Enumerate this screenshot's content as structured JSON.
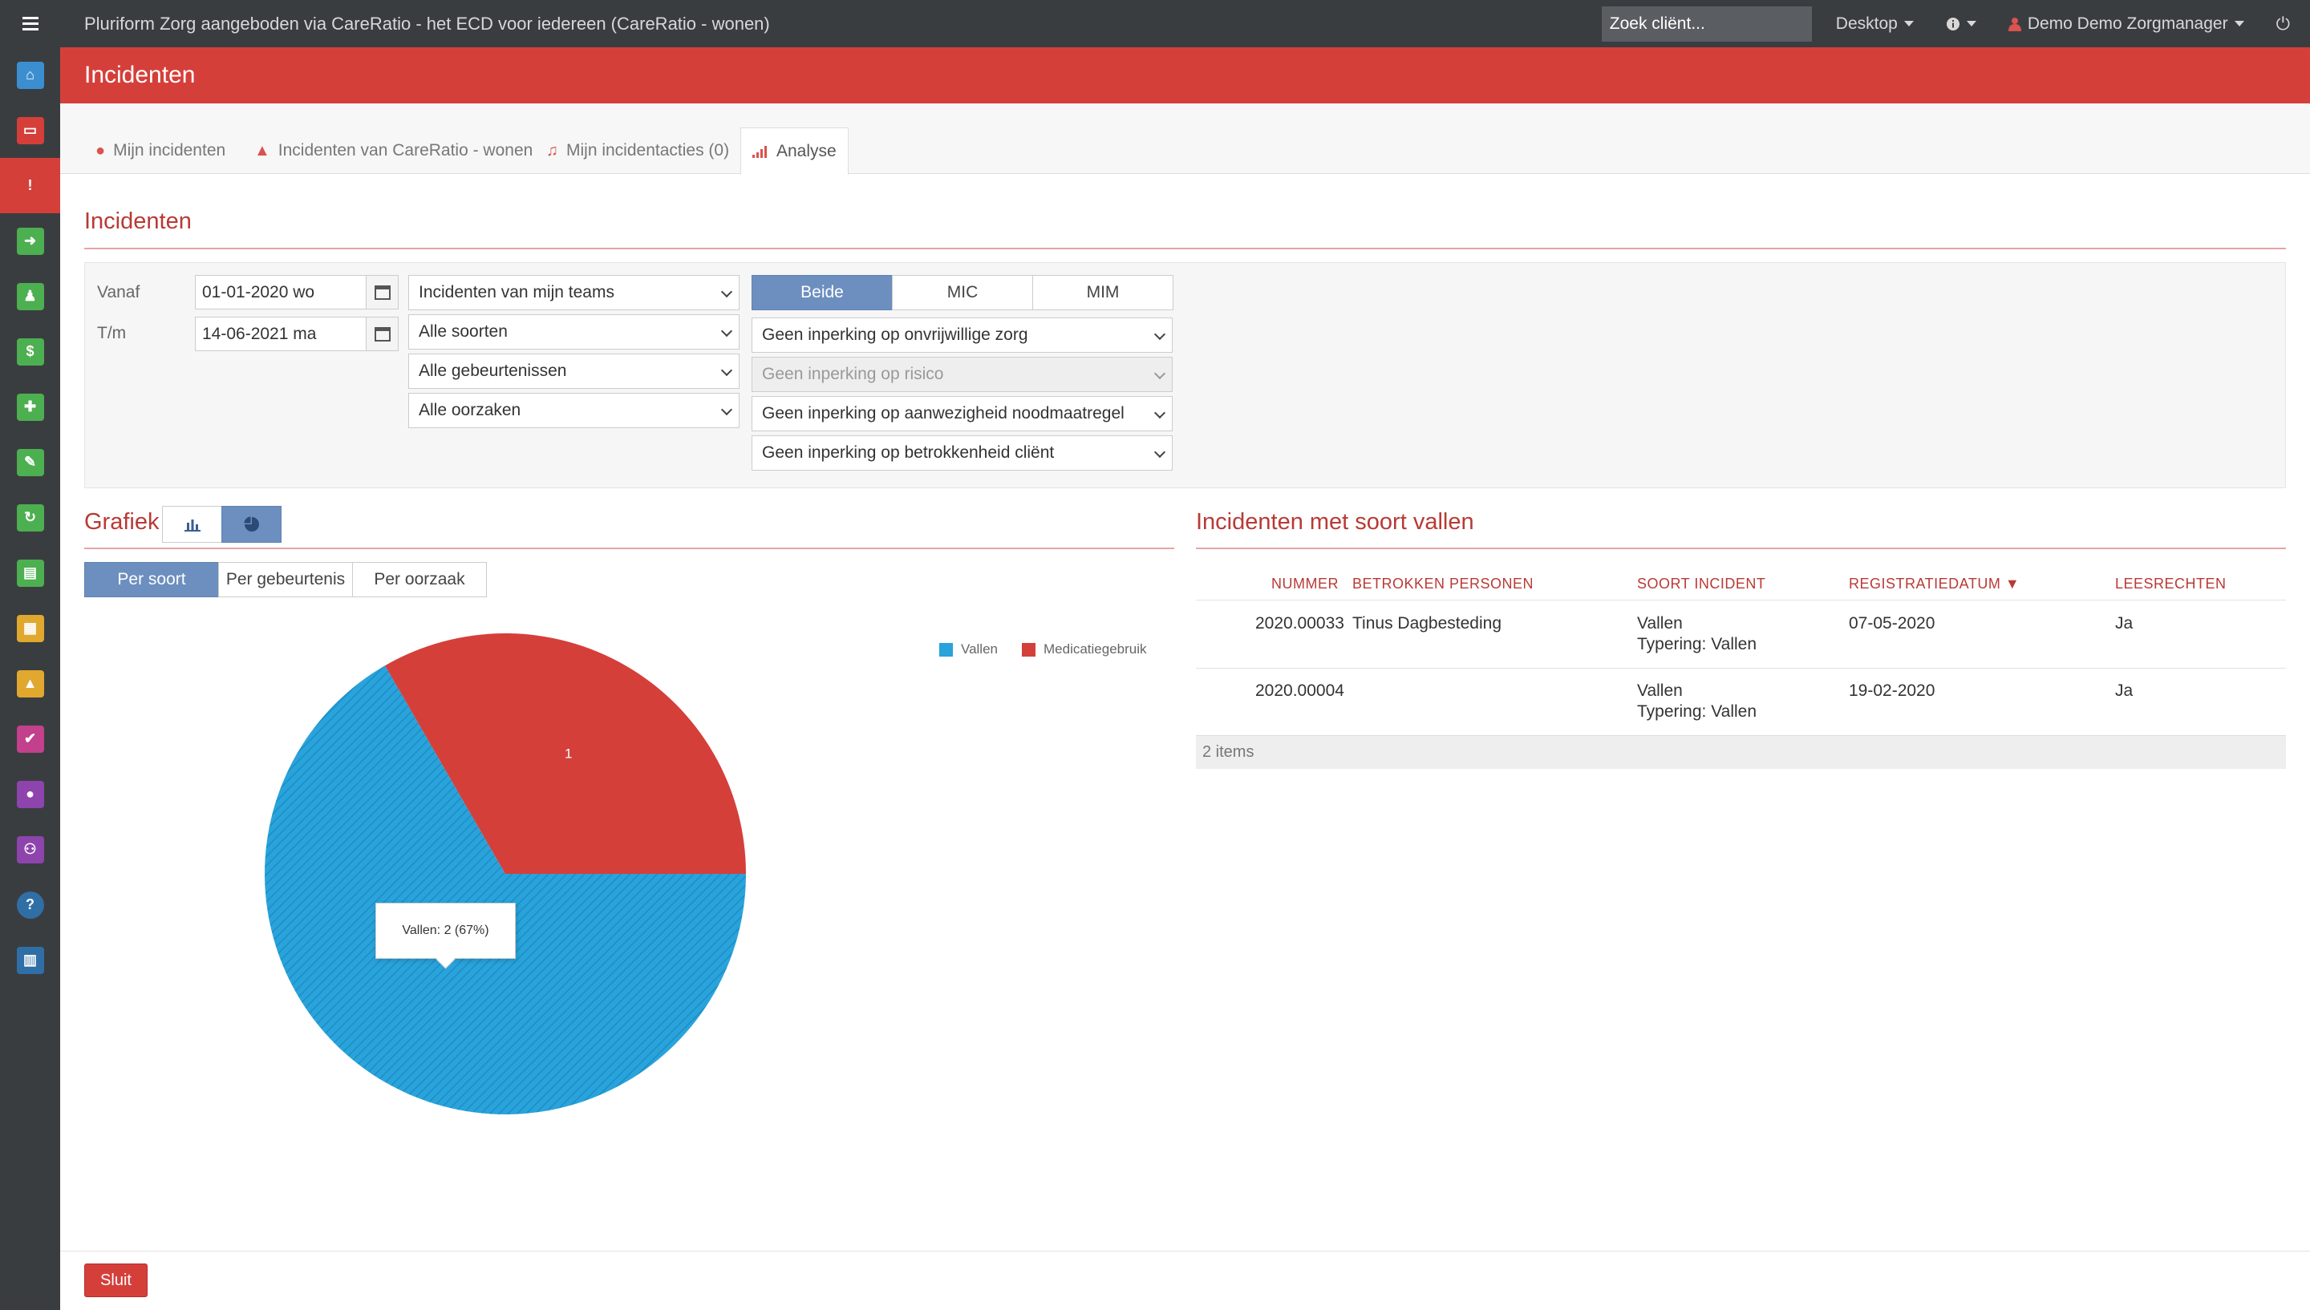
{
  "topbar": {
    "title": "Pluriform Zorg aangeboden via CareRatio - het ECD voor iedereen  (CareRatio - wonen)",
    "search_placeholder": "Zoek cliënt...",
    "desktop_label": "Desktop",
    "user_label": "Demo Demo Zorgmanager"
  },
  "sidebar": {
    "items": [
      {
        "icon": "home-icon",
        "color": "#3b8fd0"
      },
      {
        "icon": "inbox-icon",
        "color": "#d53f3a"
      },
      {
        "icon": "warning-icon",
        "color": "#d53f3a"
      },
      {
        "icon": "sign-in-icon",
        "color": "#4caf50"
      },
      {
        "icon": "person-icon",
        "color": "#4caf50"
      },
      {
        "icon": "money-icon",
        "color": "#4caf50"
      },
      {
        "icon": "puzzle-icon",
        "color": "#4caf50"
      },
      {
        "icon": "pencil-icon",
        "color": "#4caf50"
      },
      {
        "icon": "refresh-icon",
        "color": "#4caf50"
      },
      {
        "icon": "document-icon",
        "color": "#4caf50"
      },
      {
        "icon": "calendar-icon",
        "color": "#e0a82e"
      },
      {
        "icon": "car-icon",
        "color": "#e0a82e"
      },
      {
        "icon": "check-icon",
        "color": "#c2408c"
      },
      {
        "icon": "user-icon",
        "color": "#8e44ad"
      },
      {
        "icon": "group-icon",
        "color": "#8e44ad"
      },
      {
        "icon": "help-icon",
        "color": "#2f6fa6"
      },
      {
        "icon": "chart-icon",
        "color": "#2f6fa6"
      }
    ]
  },
  "header": {
    "title": "Incidenten"
  },
  "tabs": [
    {
      "label": "Mijn incidenten"
    },
    {
      "label": "Incidenten van CareRatio - wonen"
    },
    {
      "label": "Mijn incidentacties (0)"
    },
    {
      "label": "Analyse"
    }
  ],
  "filters": {
    "section_title": "Incidenten",
    "vanaf_label": "Vanaf",
    "vanaf_value": "01-01-2020 wo",
    "tm_label": "T/m",
    "tm_value": "14-06-2021 ma",
    "teams": "Incidenten van mijn teams",
    "soorten": "Alle soorten",
    "gebeurtenissen": "Alle gebeurtenissen",
    "oorzaken": "Alle oorzaken",
    "toggle": [
      "Beide",
      "MIC",
      "MIM"
    ],
    "onvrijwillige_zorg": "Geen inperking op onvrijwillige zorg",
    "risico": "Geen inperking op risico",
    "noodmaatregel": "Geen inperking op aanwezigheid noodmaatregel",
    "betrokkenheid": "Geen inperking op betrokkenheid cliënt"
  },
  "grafiek": {
    "title": "Grafiek",
    "group_buttons": [
      "Per soort",
      "Per gebeurtenis",
      "Per oorzaak"
    ],
    "tooltip": "Vallen: 2 (67%)"
  },
  "chart_data": {
    "type": "pie",
    "categories": [
      "Vallen",
      "Medicatiegebruik"
    ],
    "values": [
      2,
      1
    ],
    "colors": [
      "#29a3db",
      "#d53f3a"
    ],
    "data_labels": [
      "",
      "1"
    ],
    "legend": "top-right"
  },
  "table": {
    "title": "Incidenten met soort vallen",
    "headers": [
      "NUMMER",
      "BETROKKEN PERSONEN",
      "SOORT INCIDENT",
      "REGISTRATIEDATUM",
      "LEESRECHTEN"
    ],
    "sort_indicator": "▼",
    "rows": [
      {
        "nummer": "2020.00033",
        "personen": "Tinus Dagbesteding",
        "soort": "Vallen",
        "typering": "Typering: Vallen",
        "datum": "07-05-2020",
        "leesrechten": "Ja"
      },
      {
        "nummer": "2020.00004",
        "personen": "",
        "soort": "Vallen",
        "typering": "Typering: Vallen",
        "datum": "19-02-2020",
        "leesrechten": "Ja"
      }
    ],
    "footer": "2 items"
  },
  "footer": {
    "close_label": "Sluit"
  }
}
